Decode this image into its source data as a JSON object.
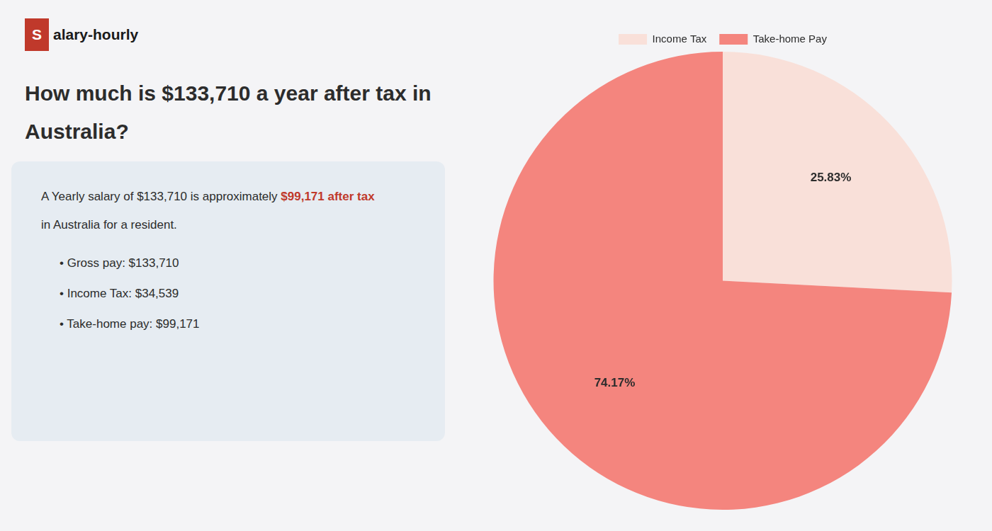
{
  "chart_data": {
    "type": "pie",
    "title": [
      "How much is $133,710 a year after tax in",
      "Australia?"
    ],
    "annotations": [
      {
        "text": "S",
        "color": "#c0392b"
      },
      {
        "text": "alary-hourly"
      },
      {
        "text": "A Yearly salary of $133,710 is approximately "
      },
      {
        "text": "$99,171 after tax",
        "color": "#c0392b"
      },
      {
        "text": "in Australia for a resident."
      },
      {
        "text": "•  Gross pay: $133,710"
      },
      {
        "text": "•  Income Tax: $34,539"
      },
      {
        "text": "•  Take-home pay: $99,171"
      }
    ],
    "categories": [
      "Income Tax",
      "Take-home Pay"
    ],
    "values": [
      25.83,
      74.17
    ],
    "value_labels": [
      "25.83%",
      "74.17%"
    ],
    "colors": [
      "#f9e0d9",
      "#f4857e"
    ],
    "data_labels": true,
    "legend": "top"
  }
}
